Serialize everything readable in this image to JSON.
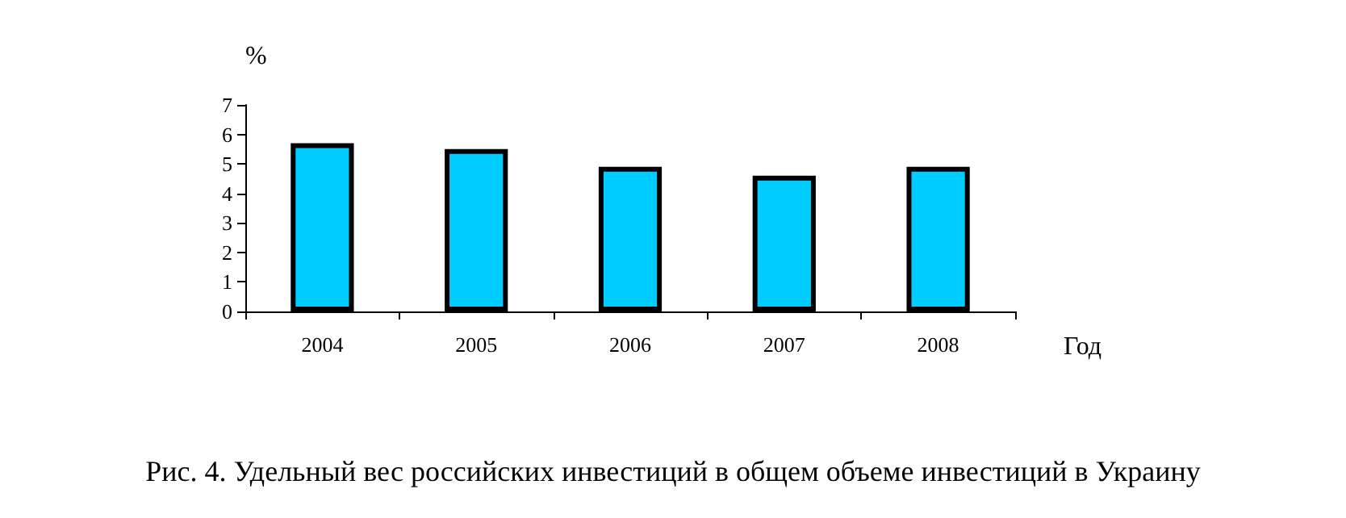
{
  "chart_data": {
    "type": "bar",
    "categories": [
      "2004",
      "2005",
      "2006",
      "2007",
      "2008"
    ],
    "values": [
      5.7,
      5.5,
      4.9,
      4.6,
      4.9
    ],
    "color": "#00ccff",
    "ylim": [
      0,
      7
    ],
    "yticks": [
      0,
      1,
      2,
      3,
      4,
      5,
      6,
      7
    ],
    "grid": false,
    "ylabel": "%",
    "xlabel": "Год",
    "annotations": [
      "Рис. 4. Удельный вес российских инвестиций в общем объеме инвестиций в Украину"
    ]
  }
}
